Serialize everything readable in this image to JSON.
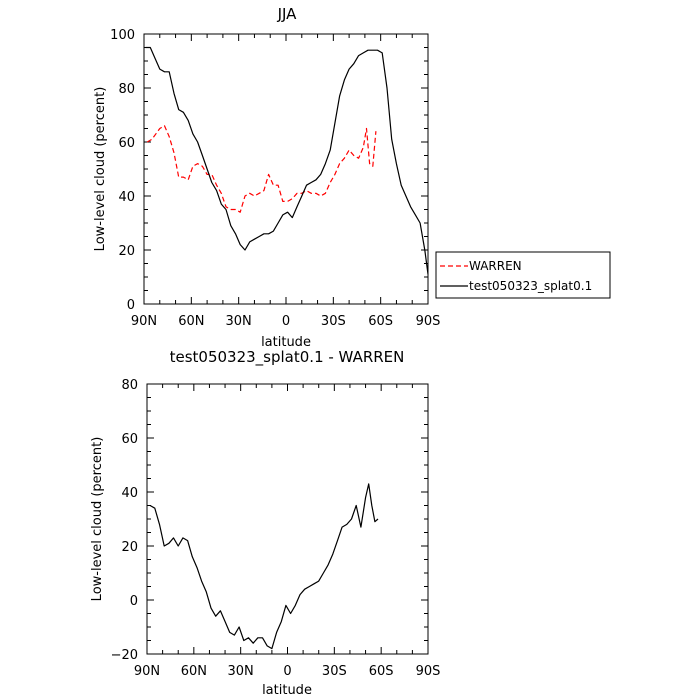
{
  "chart_data": [
    {
      "type": "line",
      "title": "JJA",
      "xlabel": "latitude",
      "ylabel": "Low-level cloud (percent)",
      "xlim": [
        -90,
        90
      ],
      "ylim": [
        0,
        100
      ],
      "xticks": [
        -90,
        -60,
        -30,
        0,
        30,
        60,
        90
      ],
      "xtick_labels": [
        "90N",
        "60N",
        "30N",
        "0",
        "30S",
        "60S",
        "90S"
      ],
      "yticks": [
        0,
        20,
        40,
        60,
        80,
        100
      ],
      "ytick_labels": [
        "0",
        "20",
        "40",
        "60",
        "80",
        "100"
      ],
      "legend_position": "right",
      "series": [
        {
          "name": "WARREN",
          "color": "#ff0000",
          "dash": "dashed",
          "x": [
            -88,
            -85,
            -80,
            -77,
            -74,
            -71,
            -68,
            -65,
            -62,
            -59,
            -56,
            -53,
            -50,
            -47,
            -44,
            -41,
            -38,
            -35,
            -32,
            -29,
            -26,
            -23,
            -20,
            -17,
            -14,
            -11,
            -8,
            -5,
            -2,
            1,
            4,
            7,
            10,
            13,
            16,
            19,
            22,
            25,
            28,
            31,
            34,
            37,
            40,
            43,
            46,
            49,
            51,
            53,
            55,
            57
          ],
          "y": [
            60,
            61,
            65,
            66,
            62,
            56,
            47,
            47,
            46,
            51,
            52,
            51,
            48,
            48,
            44,
            41,
            36,
            35,
            35,
            34,
            40,
            41,
            40,
            41,
            42,
            48,
            44,
            44,
            38,
            38,
            39,
            41,
            41,
            42,
            41,
            41,
            40,
            41,
            45,
            48,
            52,
            54,
            57,
            55,
            54,
            58,
            65,
            52,
            51,
            64
          ]
        },
        {
          "name": "test050323_splat0.1",
          "color": "#000000",
          "dash": "solid",
          "x": [
            -89,
            -86,
            -83,
            -80,
            -77,
            -74,
            -71,
            -68,
            -65,
            -62,
            -59,
            -56,
            -53,
            -50,
            -47,
            -44,
            -41,
            -38,
            -35,
            -32,
            -29,
            -26,
            -23,
            -20,
            -17,
            -14,
            -11,
            -8,
            -5,
            -2,
            1,
            4,
            7,
            10,
            13,
            16,
            19,
            22,
            25,
            28,
            31,
            34,
            37,
            40,
            43,
            46,
            49,
            52,
            55,
            58,
            61,
            64,
            67,
            70,
            73,
            76,
            79,
            82,
            85,
            88,
            90
          ],
          "y": [
            95,
            95,
            91,
            87,
            86,
            86,
            78,
            72,
            71,
            68,
            63,
            60,
            55,
            50,
            45,
            42,
            37,
            35,
            29,
            26,
            22,
            20,
            23,
            24,
            25,
            26,
            26,
            27,
            30,
            33,
            34,
            32,
            36,
            40,
            44,
            45,
            46,
            48,
            52,
            57,
            67,
            77,
            83,
            87,
            89,
            92,
            93,
            94,
            94,
            94,
            93,
            80,
            61,
            52,
            44,
            40,
            36,
            33,
            30,
            20,
            11
          ]
        }
      ]
    },
    {
      "type": "line",
      "title": "test050323_splat0.1 - WARREN",
      "xlabel": "latitude",
      "ylabel": "Low-level cloud (percent)",
      "xlim": [
        -90,
        90
      ],
      "ylim": [
        -20,
        80
      ],
      "xticks": [
        -90,
        -60,
        -30,
        0,
        30,
        60,
        90
      ],
      "xtick_labels": [
        "90N",
        "60N",
        "30N",
        "0",
        "30S",
        "60S",
        "90S"
      ],
      "yticks": [
        -20,
        0,
        20,
        40,
        60,
        80
      ],
      "ytick_labels": [
        "−20",
        "0",
        "20",
        "40",
        "60",
        "80"
      ],
      "series": [
        {
          "color": "#000000",
          "dash": "solid",
          "x": [
            -88,
            -85,
            -82,
            -79,
            -76,
            -73,
            -70,
            -67,
            -64,
            -61,
            -58,
            -55,
            -52,
            -49,
            -46,
            -43,
            -40,
            -37,
            -34,
            -31,
            -28,
            -25,
            -22,
            -19,
            -16,
            -13,
            -10,
            -7,
            -4,
            -1,
            2,
            5,
            8,
            11,
            14,
            17,
            20,
            23,
            26,
            29,
            32,
            35,
            38,
            41,
            44,
            47,
            50,
            52,
            54,
            56,
            58
          ],
          "y": [
            35,
            34,
            28,
            20,
            21,
            23,
            20,
            23,
            22,
            16,
            12,
            7,
            3,
            -3,
            -6,
            -4,
            -8,
            -12,
            -13,
            -10,
            -15,
            -14,
            -16,
            -14,
            -14,
            -17,
            -18,
            -12,
            -8,
            -2,
            -5,
            -2,
            2,
            4,
            5,
            6,
            7,
            10,
            13,
            17,
            22,
            27,
            28,
            30,
            35,
            27,
            38,
            43,
            35,
            29,
            30
          ]
        }
      ]
    }
  ]
}
